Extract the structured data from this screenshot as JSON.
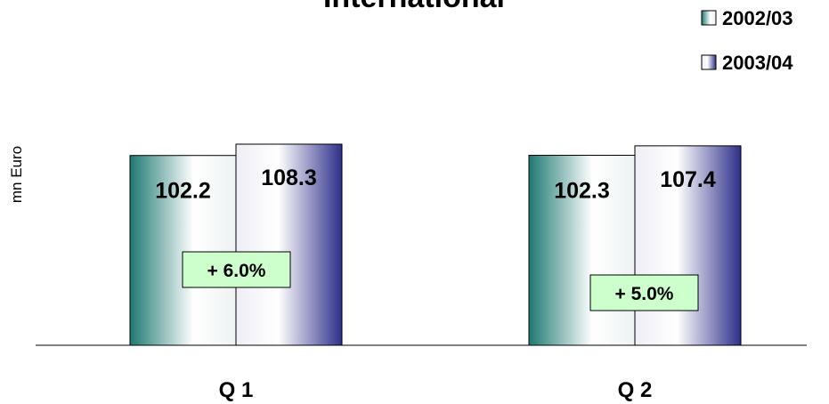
{
  "chart_data": {
    "type": "bar",
    "title": "International",
    "ylabel": "mn Euro",
    "xlabel": "",
    "categories": [
      "Q 1",
      "Q 2"
    ],
    "ylim": [
      0,
      108.3
    ],
    "grid": false,
    "legend_position": "top-right",
    "series": [
      {
        "name": "2002/03",
        "values": [
          102.2,
          102.3
        ],
        "color": "#1e7a72"
      },
      {
        "name": "2003/04",
        "values": [
          108.3,
          107.4
        ],
        "color": "#2e2f8a"
      }
    ],
    "data_labels": [
      [
        "102.2",
        "102.3"
      ],
      [
        "108.3",
        "107.4"
      ]
    ],
    "annotations": [
      "+ 6.0%",
      "+ 5.0%"
    ],
    "annotation_fill": "#ccffcc"
  }
}
